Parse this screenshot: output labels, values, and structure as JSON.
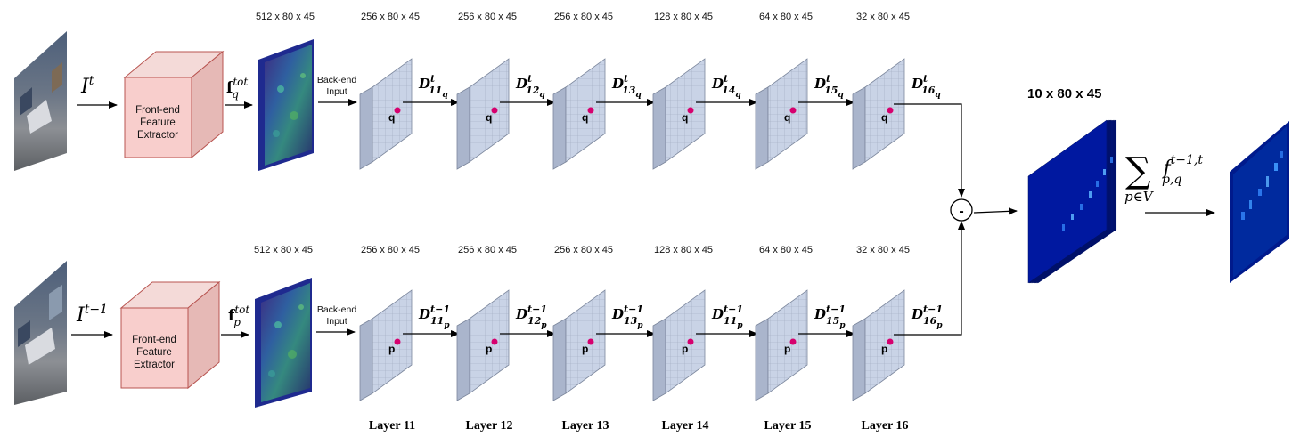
{
  "feature_dims": "512 x 80 x 45",
  "layers": [
    {
      "dim": "256 x 80 x 45",
      "label": "Layer 11",
      "sub": "11"
    },
    {
      "dim": "256 x 80 x 45",
      "label": "Layer 12",
      "sub": "12"
    },
    {
      "dim": "256 x 80 x 45",
      "label": "Layer 13",
      "sub": "13"
    },
    {
      "dim": "128 x 80 x 45",
      "label": "Layer 14",
      "sub": "14"
    },
    {
      "dim": "64 x 80 x 45",
      "label": "Layer 15",
      "sub": "15"
    },
    {
      "dim": "32 x 80 x 45",
      "label": "Layer 16",
      "sub": "16"
    }
  ],
  "top": {
    "input_base": "I",
    "input_sup": "t",
    "feat_base": "f",
    "feat_sup": "tot",
    "feat_sub": "q",
    "point": "q",
    "d_sup": "t",
    "d_sub_last": "q"
  },
  "bottom": {
    "input_base": "I",
    "input_sup": "t−1",
    "feat_base": "f",
    "feat_sup": "tot",
    "feat_sub": "p",
    "point": "p",
    "d_sup": "t−1",
    "d_sub_last": "p"
  },
  "bottom_layer4_sub": "11",
  "extractor": {
    "line1": "Front-end",
    "line2": "Feature",
    "line3": "Extractor"
  },
  "backend": {
    "line1": "Back-end",
    "line2": "Input"
  },
  "d_letter": "D",
  "diff_symbol": "-",
  "output_dims": "10 x 80 x 45",
  "sum_symbol": "∑",
  "sum_sub": "p∈V",
  "sum_term_base": "f",
  "sum_term_sup": "t−1,t",
  "sum_term_sub": "p,q",
  "colors": {
    "extractor_fill": "#f8cecc",
    "extractor_stroke": "#b85450",
    "layer_fill": "#c9d3e6",
    "layer_side": "#aab5cc",
    "point": "#d6006e",
    "heatmap_bg": "#001a8c"
  }
}
